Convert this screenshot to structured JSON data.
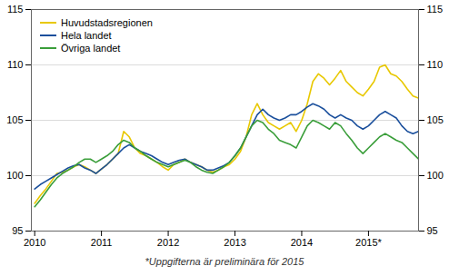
{
  "chart_data": {
    "type": "line",
    "caption": "*Uppgifterna är preliminära för 2015",
    "x": [
      2010.0,
      2010.0833333333333,
      2010.1666666666667,
      2010.25,
      2010.3333333333333,
      2010.4166666666667,
      2010.5,
      2010.5833333333333,
      2010.6666666666667,
      2010.75,
      2010.8333333333333,
      2010.9166666666667,
      2011.0,
      2011.0833333333333,
      2011.1666666666667,
      2011.25,
      2011.3333333333333,
      2011.4166666666667,
      2011.5,
      2011.5833333333333,
      2011.6666666666667,
      2011.75,
      2011.8333333333333,
      2011.9166666666667,
      2012.0,
      2012.0833333333333,
      2012.1666666666667,
      2012.25,
      2012.3333333333333,
      2012.4166666666667,
      2012.5,
      2012.5833333333333,
      2012.6666666666667,
      2012.75,
      2012.8333333333333,
      2012.9166666666667,
      2013.0,
      2013.0833333333333,
      2013.1666666666667,
      2013.25,
      2013.3333333333333,
      2013.4166666666667,
      2013.5,
      2013.5833333333333,
      2013.6666666666667,
      2013.75,
      2013.8333333333333,
      2013.9166666666667,
      2014.0,
      2014.0833333333333,
      2014.1666666666667,
      2014.25,
      2014.3333333333333,
      2014.4166666666667,
      2014.5,
      2014.5833333333333,
      2014.6666666666667,
      2014.75,
      2014.8333333333333,
      2014.9166666666667,
      2015.0,
      2015.0833333333333,
      2015.1666666666667,
      2015.25,
      2015.3333333333333,
      2015.4166666666667,
      2015.5,
      2015.5833333333333,
      2015.6666666666667,
      2015.75
    ],
    "series": [
      {
        "name": "Huvudstadsregionen",
        "color": "#e8c800",
        "values": [
          97.5,
          98.2,
          98.8,
          99.5,
          100.2,
          100.3,
          100.5,
          100.8,
          101.0,
          100.8,
          100.5,
          100.2,
          100.6,
          101.0,
          101.5,
          102.0,
          104.0,
          103.5,
          102.5,
          102.0,
          101.8,
          101.5,
          101.2,
          100.8,
          100.5,
          101.0,
          101.2,
          101.5,
          101.2,
          101.0,
          100.8,
          100.5,
          100.3,
          100.5,
          100.8,
          101.0,
          101.5,
          102.2,
          103.5,
          105.5,
          106.5,
          105.5,
          104.8,
          104.5,
          104.2,
          104.5,
          104.8,
          104.0,
          105.0,
          106.5,
          108.5,
          109.2,
          108.8,
          108.2,
          108.8,
          109.5,
          108.5,
          108.0,
          107.5,
          107.2,
          107.8,
          108.5,
          109.8,
          110.0,
          109.2,
          109.0,
          108.5,
          107.8,
          107.2,
          107.0
        ]
      },
      {
        "name": "Hela landet",
        "color": "#1a4f9c",
        "values": [
          98.8,
          99.2,
          99.5,
          99.8,
          100.1,
          100.4,
          100.7,
          100.9,
          101.0,
          100.7,
          100.5,
          100.2,
          100.6,
          101.0,
          101.5,
          102.0,
          102.5,
          102.8,
          102.5,
          102.2,
          102.0,
          101.8,
          101.5,
          101.2,
          101.0,
          101.2,
          101.4,
          101.5,
          101.2,
          101.0,
          100.8,
          100.5,
          100.5,
          100.7,
          100.9,
          101.2,
          101.8,
          102.5,
          103.5,
          104.5,
          105.5,
          106.0,
          105.5,
          105.2,
          105.0,
          105.2,
          105.5,
          105.5,
          105.8,
          106.2,
          106.5,
          106.3,
          106.0,
          105.5,
          105.2,
          105.5,
          105.2,
          105.0,
          104.5,
          104.2,
          104.5,
          105.0,
          105.5,
          105.8,
          105.5,
          105.2,
          104.5,
          104.0,
          103.8,
          104.0
        ]
      },
      {
        "name": "Övriga landet",
        "color": "#3a9e3a",
        "values": [
          97.2,
          97.8,
          98.5,
          99.2,
          99.8,
          100.2,
          100.5,
          100.8,
          101.2,
          101.5,
          101.5,
          101.2,
          101.5,
          101.8,
          102.2,
          102.8,
          103.2,
          103.0,
          102.5,
          102.2,
          101.8,
          101.5,
          101.2,
          101.0,
          100.8,
          101.0,
          101.2,
          101.4,
          101.2,
          100.8,
          100.5,
          100.3,
          100.2,
          100.5,
          100.8,
          101.2,
          101.8,
          102.5,
          103.5,
          104.5,
          105.0,
          104.8,
          104.2,
          103.8,
          103.2,
          103.0,
          102.8,
          102.5,
          103.5,
          104.5,
          105.0,
          104.8,
          104.5,
          104.2,
          104.8,
          104.5,
          103.8,
          103.2,
          102.5,
          102.0,
          102.5,
          103.0,
          103.5,
          103.8,
          103.5,
          103.2,
          103.0,
          102.5,
          102.0,
          101.5
        ]
      }
    ],
    "xlim": [
      2009.95,
      2015.75
    ],
    "xticks": [
      2010,
      2011,
      2012,
      2013,
      2014,
      {
        "value": 2015,
        "label": "2015*"
      }
    ],
    "ylim": [
      95,
      115
    ],
    "yticks": [
      95,
      100,
      105,
      110,
      115
    ],
    "y2lim": [
      95,
      115
    ],
    "y2ticks": [
      95,
      100,
      105,
      110,
      115
    ],
    "grid": true,
    "legend": "upper left"
  }
}
